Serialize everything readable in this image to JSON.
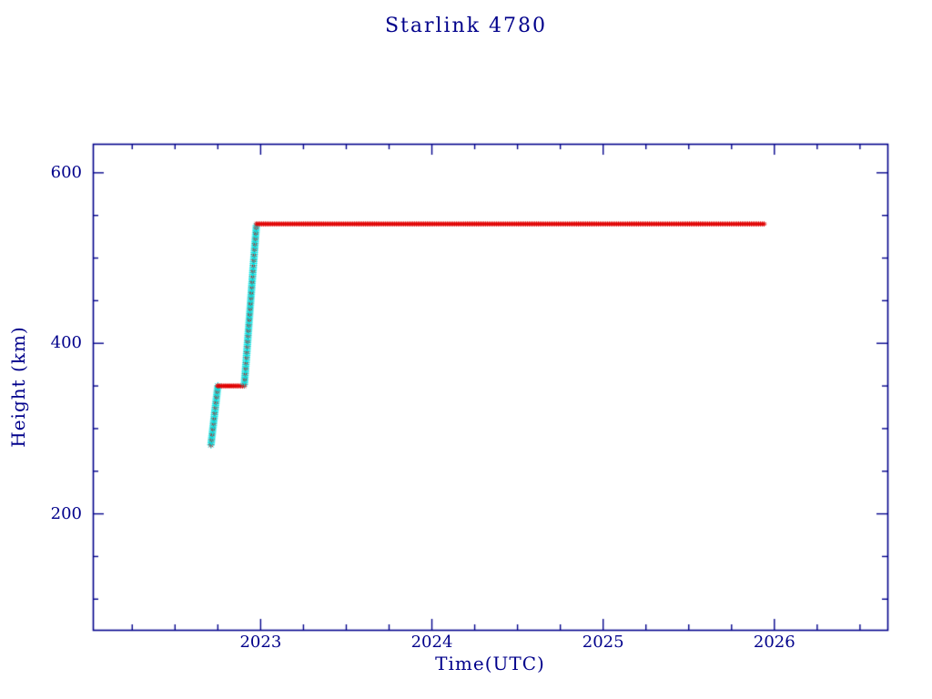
{
  "chart_data": {
    "type": "scatter",
    "title": "Starlink 4780",
    "xlabel": "Time(UTC)",
    "ylabel": "Height (km)",
    "xlim": [
      2022.02,
      2026.66
    ],
    "ylim": [
      64,
      634
    ],
    "xticks": [
      2023,
      2024,
      2025,
      2026
    ],
    "yticks": [
      200,
      400,
      600
    ],
    "x_minor_step": 0.25,
    "y_minor_step": 50,
    "grid": false,
    "legend": "none",
    "marker": "asterisk",
    "colors": {
      "axis": "#00008b",
      "data": "#e00000",
      "maneuver": "#00e5e5",
      "background": "#ffffff"
    },
    "segments": [
      {
        "name": "initial-ascent",
        "style": "mixed",
        "x0": 2022.71,
        "y0": 281,
        "x1": 2022.75,
        "y1": 350
      },
      {
        "name": "hold-350km",
        "style": "data",
        "x0": 2022.75,
        "y0": 350,
        "x1": 2022.905,
        "y1": 350
      },
      {
        "name": "orbit-raise",
        "style": "mixed",
        "x0": 2022.905,
        "y0": 352,
        "x1": 2022.975,
        "y1": 538
      },
      {
        "name": "operational-540km",
        "style": "data",
        "x0": 2022.975,
        "y0": 540,
        "x1": 2025.94,
        "y1": 540
      }
    ]
  }
}
